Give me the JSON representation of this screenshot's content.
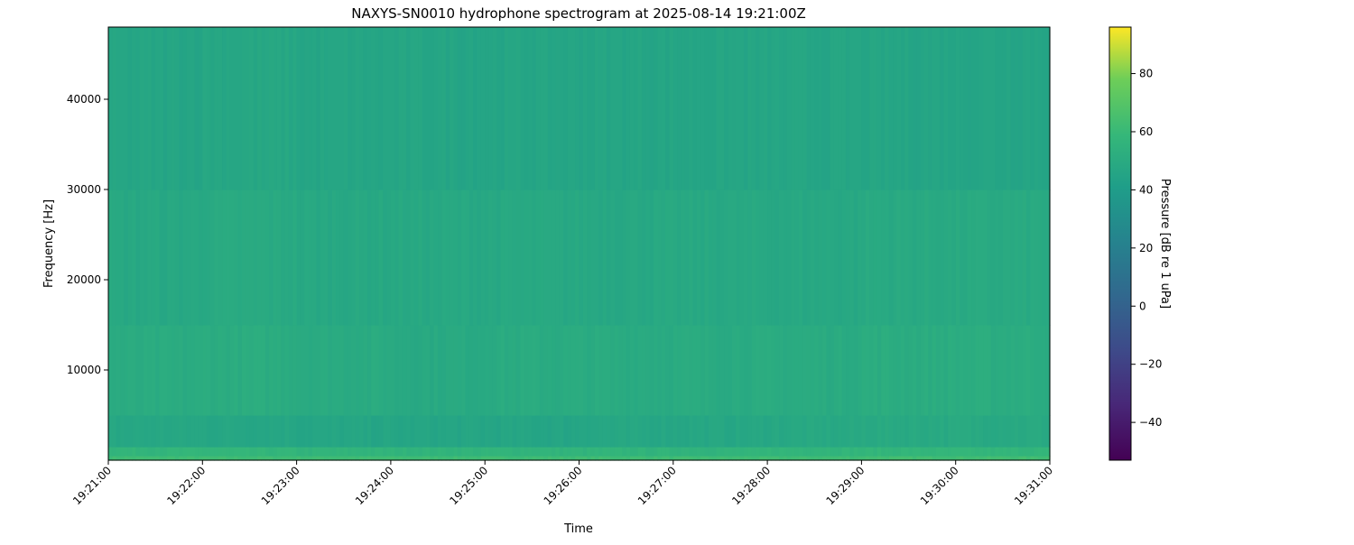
{
  "chart_data": {
    "type": "heatmap",
    "title": "NAXYS-SN0010 hydrophone spectrogram at 2025-08-14 19:21:00Z",
    "xlabel": "Time",
    "ylabel": "Frequency [Hz]",
    "colorbar_label": "Pressure [dB re 1 uPa]",
    "colormap": "viridis",
    "x_ticks": [
      "19:21:00",
      "19:22:00",
      "19:23:00",
      "19:24:00",
      "19:25:00",
      "19:26:00",
      "19:27:00",
      "19:28:00",
      "19:29:00",
      "19:30:00",
      "19:31:00"
    ],
    "xlim": [
      "19:21:00",
      "19:31:00"
    ],
    "y_ticks": [
      10000,
      20000,
      30000,
      40000
    ],
    "ylim": [
      0,
      48000
    ],
    "colorbar_ticks": [
      -40,
      -20,
      0,
      20,
      40,
      60,
      80
    ],
    "clim": [
      -53,
      96
    ],
    "grid": false,
    "time_bins": [
      "19:21",
      "19:22",
      "19:23",
      "19:24",
      "19:25",
      "19:26",
      "19:27",
      "19:28",
      "19:29",
      "19:30"
    ],
    "frequency_bands_hz": [
      [
        0,
        500
      ],
      [
        500,
        1500
      ],
      [
        1500,
        5000
      ],
      [
        5000,
        15000
      ],
      [
        15000,
        30000
      ],
      [
        30000,
        48000
      ]
    ],
    "values_db": [
      [
        62,
        62,
        62,
        62,
        62,
        62,
        62,
        62,
        63,
        63
      ],
      [
        57,
        57,
        56,
        56,
        56,
        56,
        56,
        57,
        57,
        57
      ],
      [
        47,
        47,
        46,
        46,
        46,
        47,
        47,
        48,
        49,
        49
      ],
      [
        50,
        51,
        50,
        49,
        50,
        50,
        50,
        50,
        51,
        51
      ],
      [
        48,
        49,
        48,
        48,
        48,
        48,
        48,
        48,
        49,
        49
      ],
      [
        46,
        47,
        46,
        46,
        46,
        46,
        46,
        46,
        46,
        46
      ]
    ]
  }
}
